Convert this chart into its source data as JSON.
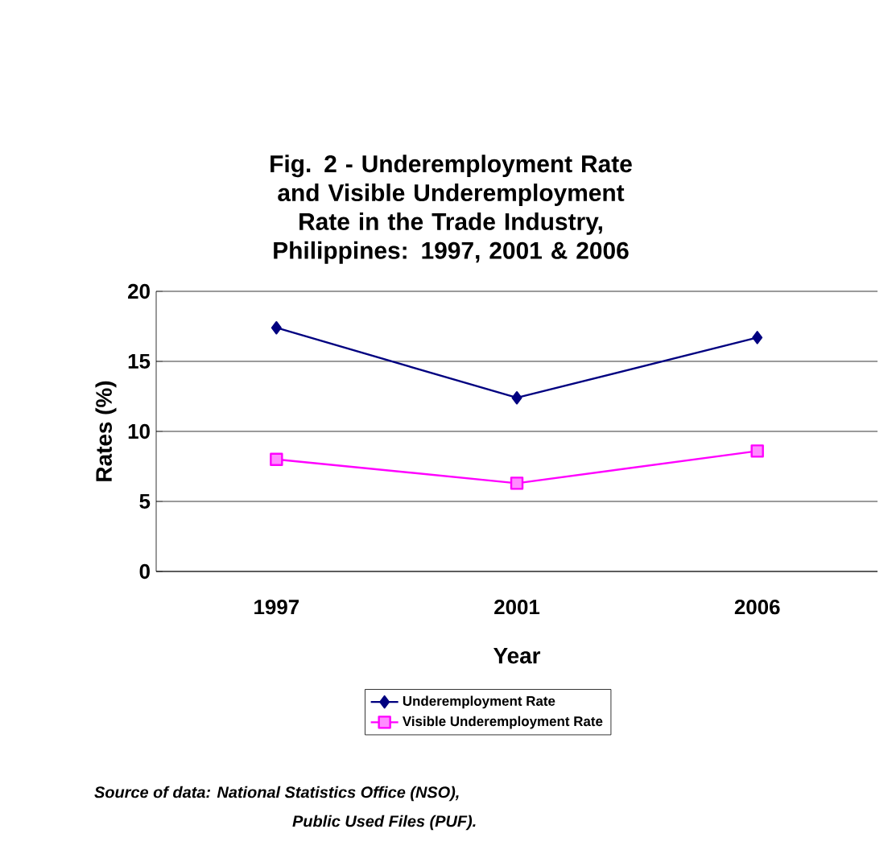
{
  "chart_data": {
    "type": "line",
    "title": "Fig. 2 - Underemployment Rate and Visible Underemployment Rate in the Trade Industry, Philippines: 1997, 2001 & 2006",
    "xlabel": "Year",
    "ylabel": "Rates (%)",
    "categories": [
      "1997",
      "2001",
      "2006"
    ],
    "series": [
      {
        "name": "Underemployment Rate",
        "color": "#000080",
        "marker": "diamond",
        "values": [
          17.4,
          12.4,
          16.7
        ]
      },
      {
        "name": "Visible Underemployment Rate",
        "color": "#ff00ff",
        "marker": "square",
        "values": [
          8.0,
          6.3,
          8.6
        ]
      }
    ],
    "ylim": [
      0,
      20
    ],
    "yticks": [
      0,
      5,
      10,
      15,
      20
    ],
    "grid": "y",
    "legend": "bottom",
    "line_style": "solid",
    "annotations": [
      "Source of data:  National  Statistics Office (NSO),",
      "Public Used Files (PUF)."
    ]
  }
}
